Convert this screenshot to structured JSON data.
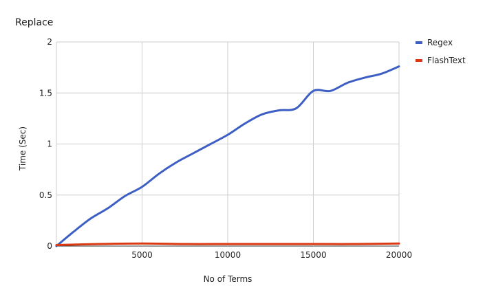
{
  "chart_data": {
    "type": "line",
    "title": "Replace",
    "xlabel": "No of Terms",
    "ylabel": "Time (Sec)",
    "xlim": [
      0,
      20000
    ],
    "ylim": [
      0,
      2
    ],
    "x_ticks": [
      "5000",
      "10000",
      "15000",
      "20000"
    ],
    "y_ticks": [
      "0",
      "0.5",
      "1",
      "1.5",
      "2"
    ],
    "grid": true,
    "legend_position": "right",
    "series": [
      {
        "name": "Regex",
        "color": "#3d5fc4",
        "x": [
          0,
          1000,
          2000,
          3000,
          4000,
          5000,
          6000,
          7000,
          8000,
          9000,
          10000,
          11000,
          12000,
          13000,
          14000,
          15000,
          16000,
          17000,
          18000,
          19000,
          20000
        ],
        "y": [
          0,
          0.14,
          0.27,
          0.37,
          0.49,
          0.58,
          0.71,
          0.82,
          0.91,
          1.0,
          1.09,
          1.2,
          1.29,
          1.33,
          1.35,
          1.52,
          1.52,
          1.6,
          1.65,
          1.69,
          1.76
        ]
      },
      {
        "name": "FlashText",
        "color": "#dc3912",
        "x": [
          0,
          2500,
          5000,
          7500,
          10000,
          12500,
          15000,
          17500,
          20000
        ],
        "y": [
          0.01,
          0.02,
          0.025,
          0.02,
          0.02,
          0.02,
          0.02,
          0.02,
          0.025
        ]
      }
    ]
  }
}
